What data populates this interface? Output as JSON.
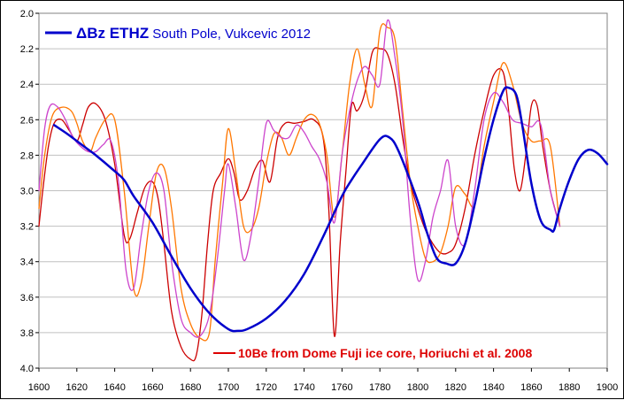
{
  "chart_data": {
    "type": "line",
    "x_axis": {
      "min": 1600,
      "max": 1900,
      "ticks": [
        1600,
        1620,
        1640,
        1660,
        1680,
        1700,
        1720,
        1740,
        1760,
        1780,
        1800,
        1820,
        1840,
        1860,
        1880,
        1900
      ]
    },
    "y_axis": {
      "min": 2.0,
      "max": 4.0,
      "inverted": true,
      "ticks": [
        2.0,
        2.2,
        2.4,
        2.6,
        2.8,
        3.0,
        3.2,
        3.4,
        3.6,
        3.8,
        4.0
      ],
      "tick_labels": [
        "2.0",
        "2.2",
        "2.4",
        "2.6",
        "2.8",
        "3.0",
        "3.2",
        "3.4",
        "3.6",
        "3.8",
        "4.0"
      ]
    },
    "grid": {
      "horizontal": true,
      "vertical": false
    },
    "legend": [
      {
        "symbol_color": "#0000cc",
        "bold_text": "ΔBz ETHZ",
        "text": " South Pole, Vukcevic 2012",
        "placement": "top-left"
      },
      {
        "symbol_color": "#dd0000",
        "text": "10Be from Dome Fuji ice core, Horiuchi et al. 2008",
        "placement": "bottom-center"
      }
    ],
    "series": [
      {
        "color": "#0000cc",
        "width": 2.5,
        "x": [
          1608,
          1615,
          1620,
          1625,
          1630,
          1640,
          1645,
          1650,
          1660,
          1670,
          1680,
          1690,
          1700,
          1705,
          1710,
          1720,
          1730,
          1740,
          1750,
          1760,
          1765,
          1770,
          1780,
          1785,
          1790,
          1800,
          1805,
          1810,
          1815,
          1820,
          1825,
          1830,
          1835,
          1840,
          1845,
          1848,
          1852,
          1855,
          1860,
          1865,
          1870,
          1872,
          1875,
          1880,
          1885,
          1890,
          1895,
          1900
        ],
        "y": [
          2.63,
          2.68,
          2.72,
          2.76,
          2.8,
          2.89,
          2.94,
          3.03,
          3.18,
          3.37,
          3.55,
          3.69,
          3.78,
          3.79,
          3.78,
          3.72,
          3.62,
          3.47,
          3.26,
          3.03,
          2.94,
          2.86,
          2.71,
          2.7,
          2.78,
          3.06,
          3.24,
          3.38,
          3.41,
          3.41,
          3.3,
          3.08,
          2.82,
          2.6,
          2.44,
          2.42,
          2.46,
          2.62,
          2.96,
          3.17,
          3.22,
          3.22,
          3.1,
          2.94,
          2.82,
          2.77,
          2.79,
          2.85
        ]
      },
      {
        "color": "#cc0000",
        "width": 1.3,
        "x": [
          1600,
          1602,
          1605,
          1608,
          1612,
          1616,
          1620,
          1623,
          1626,
          1630,
          1635,
          1640,
          1645,
          1648,
          1652,
          1656,
          1660,
          1663,
          1666,
          1670,
          1675,
          1680,
          1683,
          1686,
          1689,
          1692,
          1696,
          1700,
          1703,
          1706,
          1710,
          1714,
          1718,
          1722,
          1726,
          1730,
          1735,
          1740,
          1745,
          1750,
          1753,
          1756,
          1759,
          1762,
          1765,
          1768,
          1772,
          1776,
          1780,
          1784,
          1788,
          1792,
          1796,
          1800,
          1804,
          1808,
          1812,
          1816,
          1820,
          1825,
          1830,
          1835,
          1840,
          1845,
          1848,
          1851,
          1854,
          1857,
          1860,
          1863,
          1866,
          1870,
          1875
        ],
        "y": [
          3.2,
          3.0,
          2.75,
          2.62,
          2.6,
          2.66,
          2.72,
          2.63,
          2.53,
          2.51,
          2.6,
          2.85,
          3.25,
          3.27,
          3.12,
          2.98,
          2.95,
          3.05,
          3.3,
          3.68,
          3.88,
          3.95,
          3.93,
          3.7,
          3.3,
          3.0,
          2.9,
          2.82,
          2.9,
          3.05,
          3.0,
          2.88,
          2.83,
          2.95,
          2.7,
          2.62,
          2.62,
          2.61,
          2.6,
          2.7,
          3.1,
          3.82,
          3.3,
          2.9,
          2.52,
          2.55,
          2.45,
          2.22,
          2.2,
          2.23,
          2.4,
          2.7,
          2.95,
          3.1,
          3.22,
          3.3,
          3.35,
          3.35,
          3.3,
          3.1,
          2.8,
          2.55,
          2.35,
          2.33,
          2.55,
          2.88,
          3.0,
          2.8,
          2.52,
          2.52,
          2.75,
          3.0,
          3.2
        ]
      },
      {
        "color": "#ff7700",
        "width": 1.3,
        "x": [
          1600,
          1603,
          1607,
          1612,
          1617,
          1620,
          1623,
          1627,
          1630,
          1635,
          1640,
          1645,
          1650,
          1654,
          1658,
          1662,
          1666,
          1670,
          1675,
          1680,
          1685,
          1690,
          1693,
          1697,
          1700,
          1704,
          1708,
          1712,
          1716,
          1720,
          1724,
          1728,
          1732,
          1736,
          1740,
          1744,
          1748,
          1752,
          1756,
          1760,
          1764,
          1768,
          1772,
          1776,
          1780,
          1784,
          1788,
          1792,
          1796,
          1800,
          1804,
          1808,
          1812,
          1816,
          1820,
          1825,
          1830,
          1835,
          1840,
          1845,
          1850,
          1855,
          1860,
          1865,
          1870,
          1875
        ],
        "y": [
          3.1,
          2.8,
          2.58,
          2.53,
          2.55,
          2.62,
          2.72,
          2.78,
          2.7,
          2.6,
          2.6,
          3.0,
          3.55,
          3.52,
          3.2,
          2.9,
          2.87,
          3.1,
          3.55,
          3.75,
          3.83,
          3.8,
          3.4,
          2.95,
          2.65,
          2.9,
          3.2,
          3.22,
          3.1,
          2.85,
          2.68,
          2.7,
          2.8,
          2.7,
          2.6,
          2.57,
          2.62,
          2.8,
          3.15,
          2.8,
          2.4,
          2.2,
          2.4,
          2.52,
          2.1,
          2.08,
          2.15,
          2.55,
          2.95,
          3.2,
          3.38,
          3.4,
          3.35,
          3.2,
          2.98,
          3.02,
          3.08,
          2.75,
          2.5,
          2.28,
          2.4,
          2.62,
          2.72,
          2.72,
          2.75,
          3.2
        ]
      },
      {
        "color": "#cc44cc",
        "width": 1.3,
        "x": [
          1600,
          1603,
          1606,
          1610,
          1614,
          1618,
          1622,
          1626,
          1630,
          1634,
          1638,
          1642,
          1646,
          1650,
          1654,
          1658,
          1662,
          1666,
          1670,
          1675,
          1680,
          1685,
          1690,
          1694,
          1698,
          1700,
          1704,
          1708,
          1712,
          1716,
          1720,
          1724,
          1728,
          1732,
          1736,
          1740,
          1744,
          1748,
          1752,
          1756,
          1760,
          1764,
          1768,
          1772,
          1776,
          1780,
          1784,
          1788,
          1792,
          1796,
          1800,
          1804,
          1808,
          1812,
          1816,
          1820,
          1825,
          1830,
          1835,
          1840,
          1845,
          1850,
          1855,
          1860,
          1865,
          1870,
          1875
        ],
        "y": [
          3.0,
          2.65,
          2.52,
          2.53,
          2.6,
          2.7,
          2.75,
          2.78,
          2.78,
          2.74,
          2.72,
          2.95,
          3.45,
          3.55,
          3.25,
          3.0,
          2.9,
          3.0,
          3.4,
          3.72,
          3.8,
          3.82,
          3.7,
          3.4,
          3.0,
          2.85,
          3.1,
          3.39,
          3.25,
          2.95,
          2.62,
          2.66,
          2.7,
          2.7,
          2.63,
          2.67,
          2.75,
          2.82,
          2.95,
          3.18,
          2.8,
          2.55,
          2.38,
          2.3,
          2.35,
          2.4,
          2.04,
          2.25,
          2.6,
          3.15,
          3.5,
          3.4,
          3.15,
          3.0,
          2.83,
          3.2,
          3.3,
          3.0,
          2.6,
          2.45,
          2.5,
          2.6,
          2.62,
          2.64,
          2.63,
          3.0,
          3.2
        ]
      }
    ]
  }
}
